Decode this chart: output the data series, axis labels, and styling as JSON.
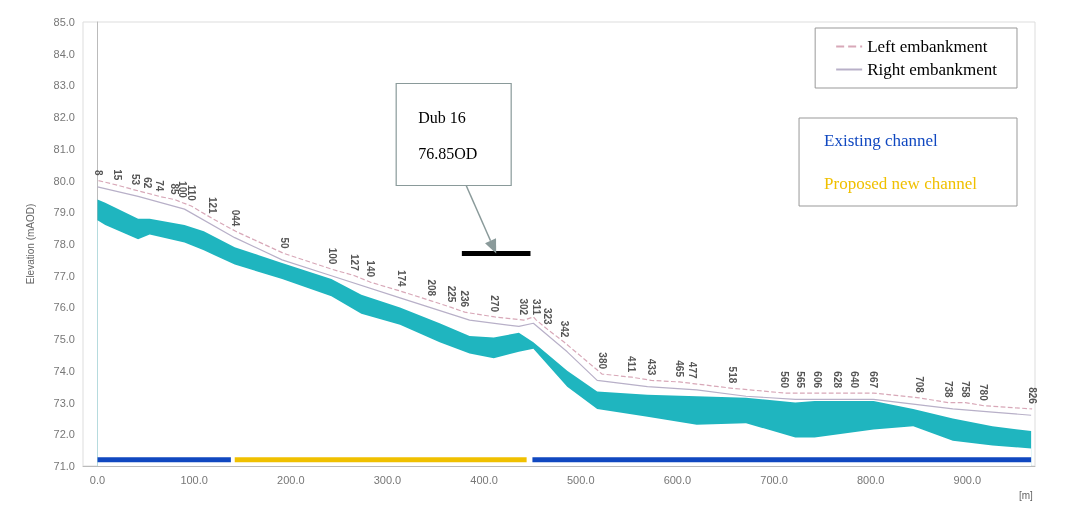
{
  "chart_data": {
    "type": "area",
    "ylabel": "Elevation (mAOD)",
    "xlabel": "[m]",
    "xlim": [
      -15,
      970
    ],
    "xticks": [
      {
        "value": 0,
        "label": "0.0"
      },
      {
        "value": 100,
        "label": "100.0"
      },
      {
        "value": 200,
        "label": "200.0"
      },
      {
        "value": 300,
        "label": "300.0"
      },
      {
        "value": 400,
        "label": "400.0"
      },
      {
        "value": 500,
        "label": "500.0"
      },
      {
        "value": 600,
        "label": "600.0"
      },
      {
        "value": 700,
        "label": "700.0"
      },
      {
        "value": 800,
        "label": "800.0"
      },
      {
        "value": 900,
        "label": "900.0"
      }
    ],
    "ylim": [
      71,
      85
    ],
    "yticks": [
      {
        "value": 71,
        "label": "71.0"
      },
      {
        "value": 72,
        "label": "72.0"
      },
      {
        "value": 73,
        "label": "73.0"
      },
      {
        "value": 74,
        "label": "74.0"
      },
      {
        "value": 75,
        "label": "75.0"
      },
      {
        "value": 76,
        "label": "76.0"
      },
      {
        "value": 77,
        "label": "77.0"
      },
      {
        "value": 78,
        "label": "78.0"
      },
      {
        "value": 79,
        "label": "79.0"
      },
      {
        "value": 80,
        "label": "80.0"
      },
      {
        "value": 81,
        "label": "81.0"
      },
      {
        "value": 82,
        "label": "82.0"
      },
      {
        "value": 83,
        "label": "83.0"
      },
      {
        "value": 84,
        "label": "84.0"
      },
      {
        "value": 85,
        "label": "85.0"
      }
    ],
    "grid": false,
    "legend": "top right",
    "series": [
      {
        "color": "#1fb5bf",
        "x": [
          0,
          8,
          42,
          54,
          90,
          110,
          142,
          191,
          242,
          273,
          313,
          354,
          385,
          410,
          436,
          451,
          486,
          517,
          569,
          620,
          671,
          722,
          742,
          803,
          844,
          885,
          926,
          966
        ],
        "values": [
          79.4,
          79.3,
          78.8,
          78.8,
          78.6,
          78.4,
          77.9,
          77.4,
          76.9,
          76.4,
          76.0,
          75.5,
          75.1,
          75.05,
          75.2,
          74.9,
          74.0,
          73.35,
          73.25,
          73.2,
          73.15,
          73.0,
          73.05,
          73.05,
          72.8,
          72.5,
          72.25,
          72.1
        ]
      },
      {
        "color": "#ffffff",
        "x": [
          0,
          8,
          42,
          54,
          90,
          110,
          142,
          191,
          242,
          273,
          313,
          354,
          385,
          410,
          436,
          451,
          486,
          517,
          569,
          620,
          671,
          722,
          742,
          803,
          844,
          885,
          926,
          966
        ],
        "values": [
          78.75,
          78.6,
          78.15,
          78.3,
          78.05,
          77.8,
          77.35,
          76.9,
          76.35,
          75.8,
          75.45,
          74.9,
          74.55,
          74.4,
          74.6,
          74.7,
          73.5,
          72.8,
          72.55,
          72.3,
          72.35,
          71.9,
          71.9,
          72.15,
          72.25,
          71.8,
          71.65,
          71.55
        ]
      },
      {
        "type": "line",
        "name": "Left embankment",
        "color": "#d8a8b8",
        "line_style": "dashed",
        "x": [
          1,
          21,
          39,
          52,
          64,
          80,
          88,
          97,
          119,
          143,
          193,
          243,
          266,
          282,
          315,
          346,
          366,
          380,
          411,
          441,
          451,
          454,
          466,
          483,
          522,
          553,
          573,
          602,
          616,
          657,
          711,
          727,
          745,
          766,
          783,
          803,
          850,
          880,
          898,
          917,
          967
        ],
        "values": [
          80.0,
          79.85,
          79.7,
          79.6,
          79.5,
          79.4,
          79.3,
          79.2,
          78.8,
          78.4,
          77.7,
          77.2,
          77.0,
          76.8,
          76.5,
          76.2,
          76.0,
          75.85,
          75.7,
          75.6,
          75.7,
          75.6,
          75.3,
          74.9,
          73.9,
          73.8,
          73.7,
          73.65,
          73.6,
          73.45,
          73.3,
          73.3,
          73.3,
          73.3,
          73.3,
          73.3,
          73.15,
          73.0,
          73.0,
          72.9,
          72.8
        ]
      },
      {
        "type": "line",
        "name": "Right embankment",
        "color": "#b8b0c8",
        "line_style": "solid",
        "x": [
          0,
          42,
          90,
          142,
          191,
          242,
          313,
          385,
          436,
          451,
          486,
          517,
          569,
          620,
          671,
          722,
          803,
          885,
          926,
          966
        ],
        "values": [
          79.8,
          79.5,
          79.1,
          78.2,
          77.5,
          77.0,
          76.3,
          75.6,
          75.4,
          75.5,
          74.6,
          73.7,
          73.5,
          73.4,
          73.2,
          73.1,
          73.1,
          72.8,
          72.7,
          72.6
        ]
      },
      {
        "type": "line",
        "name": "Existing channel",
        "color": "#1048c0",
        "x": [
          0,
          138,
          294,
          450,
          966
        ],
        "values": [
          71.2,
          71.2,
          null,
          71.2,
          71.2
        ]
      },
      {
        "type": "line",
        "name": "Proposed new channel",
        "color": "#f0c000",
        "x": [
          142,
          444
        ],
        "values": [
          71.2,
          71.2
        ]
      },
      {
        "type": "line",
        "color": "#000000",
        "x": [
          377,
          448
        ],
        "values": [
          77.7,
          77.7
        ]
      }
    ],
    "annotations": [
      "Dub 16\n76.85OD",
      {
        "text": "8",
        "x": 1,
        "y": 80.0
      },
      {
        "text": "15",
        "x": 21,
        "y": 79.85
      },
      {
        "text": "53",
        "x": 39,
        "y": 79.7
      },
      {
        "text": "62",
        "x": 52,
        "y": 79.6
      },
      {
        "text": "74",
        "x": 64,
        "y": 79.5
      },
      {
        "text": "85",
        "x": 80,
        "y": 79.4
      },
      {
        "text": "100",
        "x": 88,
        "y": 79.3
      },
      {
        "text": "110",
        "x": 97,
        "y": 79.2
      },
      {
        "text": "121",
        "x": 119,
        "y": 78.8
      },
      {
        "text": "044",
        "x": 143,
        "y": 78.4
      },
      {
        "text": "50",
        "x": 193,
        "y": 77.7
      },
      {
        "text": "100",
        "x": 243,
        "y": 77.2
      },
      {
        "text": "127",
        "x": 266,
        "y": 77.0
      },
      {
        "text": "140",
        "x": 282,
        "y": 76.8
      },
      {
        "text": "174",
        "x": 315,
        "y": 76.5
      },
      {
        "text": "208",
        "x": 346,
        "y": 76.2
      },
      {
        "text": "225",
        "x": 366,
        "y": 76.0
      },
      {
        "text": "236",
        "x": 380,
        "y": 75.85
      },
      {
        "text": "270",
        "x": 411,
        "y": 75.7
      },
      {
        "text": "302",
        "x": 441,
        "y": 75.6
      },
      {
        "text": "311",
        "x": 454,
        "y": 75.6
      },
      {
        "text": "323",
        "x": 466,
        "y": 75.3
      },
      {
        "text": "342",
        "x": 483,
        "y": 74.9
      },
      {
        "text": "380",
        "x": 522,
        "y": 73.9
      },
      {
        "text": "411",
        "x": 553,
        "y": 73.8
      },
      {
        "text": "433",
        "x": 573,
        "y": 73.7
      },
      {
        "text": "465",
        "x": 602,
        "y": 73.65
      },
      {
        "text": "477",
        "x": 616,
        "y": 73.6
      },
      {
        "text": "518",
        "x": 657,
        "y": 73.45
      },
      {
        "text": "560",
        "x": 711,
        "y": 73.3
      },
      {
        "text": "565",
        "x": 727,
        "y": 73.3
      },
      {
        "text": "606",
        "x": 745,
        "y": 73.3
      },
      {
        "text": "628",
        "x": 766,
        "y": 73.3
      },
      {
        "text": "640",
        "x": 783,
        "y": 73.3
      },
      {
        "text": "667",
        "x": 803,
        "y": 73.3
      },
      {
        "text": "708",
        "x": 850,
        "y": 73.15
      },
      {
        "text": "738",
        "x": 880,
        "y": 73.0
      },
      {
        "text": "758",
        "x": 898,
        "y": 73.0
      },
      {
        "text": "780",
        "x": 917,
        "y": 72.9
      },
      {
        "text": "826",
        "x": 967,
        "y": 72.8
      }
    ]
  }
}
